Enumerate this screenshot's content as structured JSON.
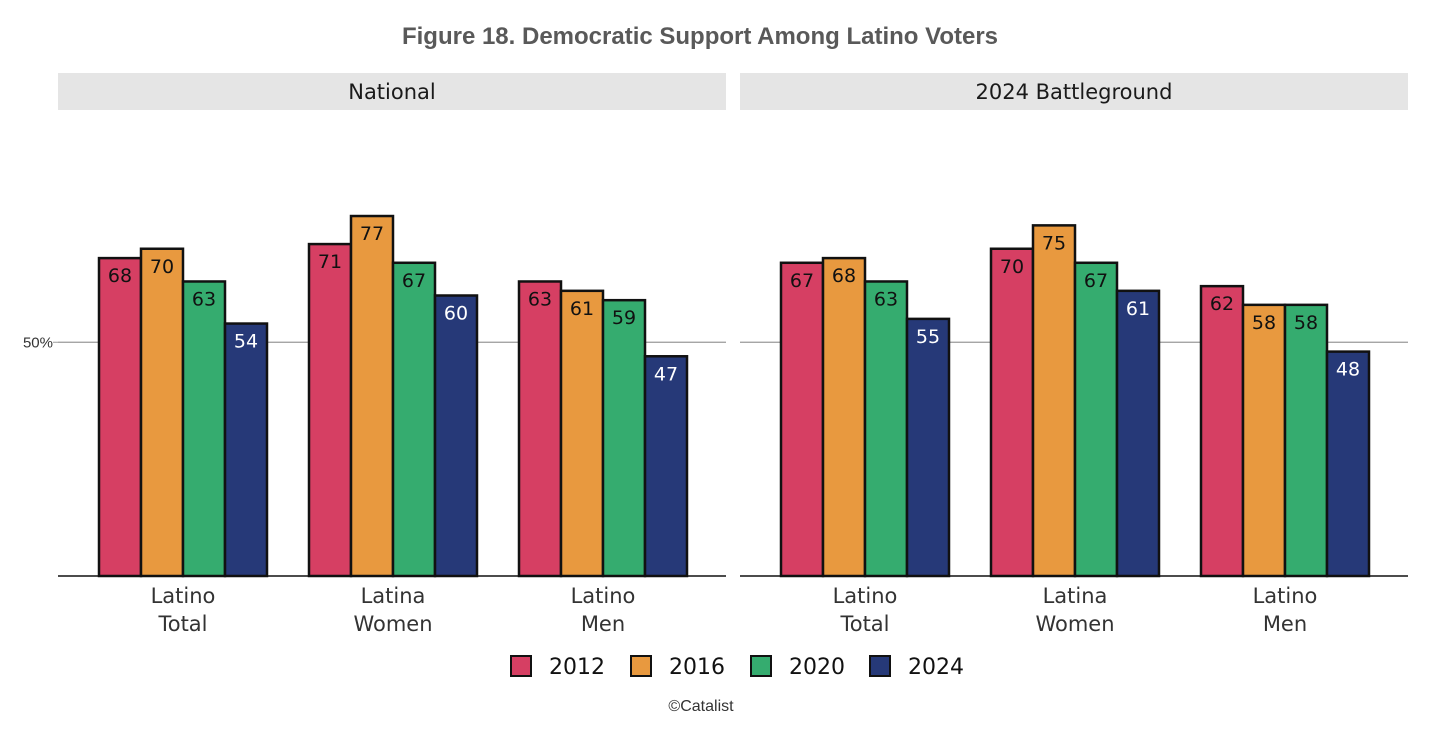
{
  "chart_data": {
    "type": "bar",
    "title": "Figure 18. Democratic Support Among Latino Voters",
    "caption": "©Catalist",
    "y_axis": {
      "ylim": [
        0,
        100
      ],
      "ticks": [
        {
          "value": 50,
          "label": "50%"
        }
      ],
      "gridline_at": 50
    },
    "categories": [
      {
        "lines": [
          "Latino",
          "Total"
        ]
      },
      {
        "lines": [
          "Latina",
          "Women"
        ]
      },
      {
        "lines": [
          "Latino",
          "Men"
        ]
      }
    ],
    "series": [
      {
        "name": "2012",
        "color": "#d63f63",
        "label_color": "#111111"
      },
      {
        "name": "2016",
        "color": "#e8993f",
        "label_color": "#111111"
      },
      {
        "name": "2020",
        "color": "#35ac6f",
        "label_color": "#111111"
      },
      {
        "name": "2024",
        "color": "#263978",
        "label_color": "#ffffff"
      }
    ],
    "panels": [
      {
        "label": "National",
        "values": [
          [
            68,
            70,
            63,
            54
          ],
          [
            71,
            77,
            67,
            60
          ],
          [
            63,
            61,
            59,
            47
          ]
        ]
      },
      {
        "label": "2024 Battleground",
        "values": [
          [
            67,
            68,
            63,
            55
          ],
          [
            70,
            75,
            67,
            61
          ],
          [
            62,
            58,
            58,
            48
          ]
        ]
      }
    ],
    "legend": {
      "position": "bottom"
    },
    "colors": {
      "strip": "#e5e5e5",
      "grid": "#9a9a9a",
      "axis": "#111111",
      "title": "#595959"
    }
  }
}
